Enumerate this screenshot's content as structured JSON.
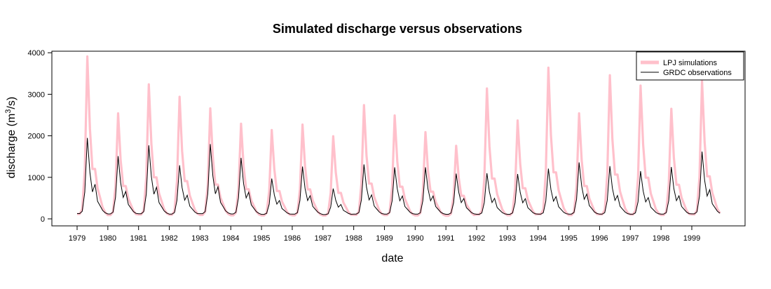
{
  "chart_data": {
    "type": "line",
    "title": "Simulated discharge versus observations",
    "xlabel": "date",
    "ylabel": "discharge (m^3/s)",
    "ylim": [
      0,
      4000
    ],
    "yticks": [
      0,
      1000,
      2000,
      3000,
      4000
    ],
    "x": [
      "1979",
      "1980",
      "1981",
      "1982",
      "1983",
      "1984",
      "1985",
      "1986",
      "1987",
      "1988",
      "1989",
      "1990",
      "1991",
      "1992",
      "1993",
      "1994",
      "1995",
      "1996",
      "1997",
      "1998",
      "1999"
    ],
    "xticks": [
      "1979",
      "1980",
      "1981",
      "1982",
      "1983",
      "1984",
      "1985",
      "1986",
      "1987",
      "1988",
      "1989",
      "1990",
      "1991",
      "1992",
      "1993",
      "1994",
      "1995",
      "1996",
      "1997",
      "1998",
      "1999"
    ],
    "legend_position": "top-right",
    "grid": false,
    "series": [
      {
        "name": "LPJ simulations",
        "color": "#ffc0cb",
        "annual_peaks": [
          3870,
          2500,
          3200,
          2900,
          2620,
          2250,
          2100,
          2230,
          1950,
          2700,
          2450,
          2050,
          1720,
          3100,
          2330,
          3600,
          2500,
          3420,
          3170,
          2610,
          3280
        ]
      },
      {
        "name": "GRDC observations",
        "color": "#000000",
        "annual_peaks": [
          1860,
          1420,
          1680,
          1200,
          1710,
          1380,
          880,
          1170,
          640,
          1220,
          1150,
          1150,
          1000,
          1010,
          990,
          1120,
          1270,
          1180,
          1060,
          1160,
          1530
        ]
      }
    ]
  }
}
